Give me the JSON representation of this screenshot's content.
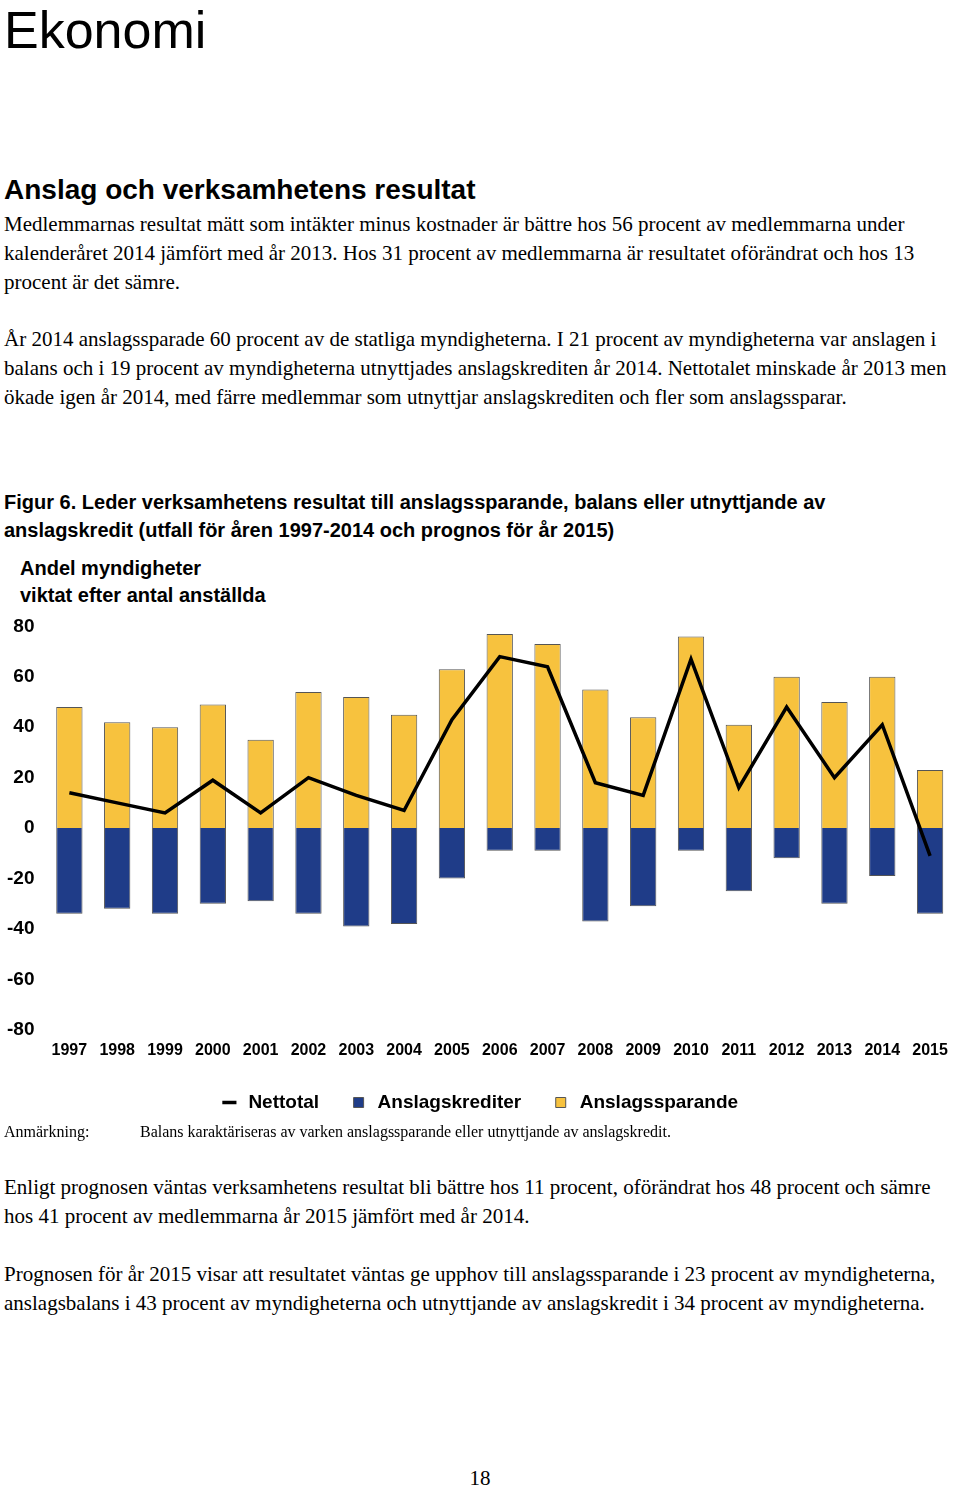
{
  "header": {
    "title": "Ekonomi"
  },
  "section": {
    "title": "Anslag och verksamhetens resultat",
    "paragraphs": [
      "Medlemmarnas resultat mätt som intäkter minus kostnader är bättre hos 56 procent av medlemmarna under kalenderåret 2014 jämfört med år 2013. Hos 31 procent av medlemmarna är resultatet oförändrat och hos 13 procent är det sämre.",
      "År 2014 anslagssparade 60 procent av de statliga myndigheterna. I 21 procent av myndigheterna var anslagen i balans och i 19 procent av myndigheterna utnyttjades anslagskrediten år 2014. Nettotalet minskade år 2013 men ökade igen år 2014, med färre medlemmar som utnyttjar anslagskrediten och fler som anslagssparar."
    ]
  },
  "figure": {
    "label": "Figur 6.",
    "caption": "Leder verksamhetens resultat till anslagssparande, balans eller utnyttjande av anslagskredit (utfall för åren 1997-2014 och prognos för år 2015)"
  },
  "chart_data": {
    "type": "bar",
    "y_label": [
      "Andel myndigheter",
      "viktat efter antal anställda"
    ],
    "categories": [
      "1997",
      "1998",
      "1999",
      "2000",
      "2001",
      "2002",
      "2003",
      "2004",
      "2005",
      "2006",
      "2007",
      "2008",
      "2009",
      "2010",
      "2011",
      "2012",
      "2013",
      "2014",
      "2015"
    ],
    "series": [
      {
        "name": "Anslagskrediter",
        "color": "#1f3c88",
        "values": [
          -34,
          -32,
          -34,
          -30,
          -29,
          -34,
          -39,
          -38,
          -20,
          -9,
          -9,
          -37,
          -31,
          -9,
          -25,
          -12,
          -30,
          -19,
          -34
        ]
      },
      {
        "name": "Anslagssparande",
        "color": "#f7c23e",
        "values": [
          48,
          42,
          40,
          49,
          35,
          54,
          52,
          45,
          63,
          77,
          73,
          55,
          44,
          76,
          41,
          60,
          50,
          60,
          23
        ]
      },
      {
        "name": "Nettotal",
        "type": "line",
        "color": "#000000",
        "values": [
          14,
          10,
          6,
          19,
          6,
          20,
          13,
          7,
          43,
          68,
          64,
          18,
          13,
          67,
          16,
          48,
          20,
          41,
          -11
        ]
      }
    ],
    "ylim": [
      -80,
      80
    ],
    "yticks": [
      -80,
      -60,
      -40,
      -20,
      0,
      20,
      40,
      60,
      80
    ],
    "grid": false,
    "legend": "bottom"
  },
  "note": {
    "label": "Anmärkning:",
    "text": "Balans karaktäriseras av varken anslagssparande eller utnyttjande av anslagskredit."
  },
  "paragraphs_after": [
    "Enligt prognosen väntas verksamhetens resultat bli bättre hos 11 procent, oförändrat hos 48 procent och sämre hos 41 procent av medlemmarna år 2015 jämfört med år 2014.",
    "Prognosen för år 2015 visar att resultatet väntas ge upphov till anslagssparande i 23 procent av myndigheterna, anslagsbalans i 43 procent av myndigheterna och utnyttjande av anslagskredit i 34 procent av myndigheterna."
  ],
  "page_number": "18"
}
